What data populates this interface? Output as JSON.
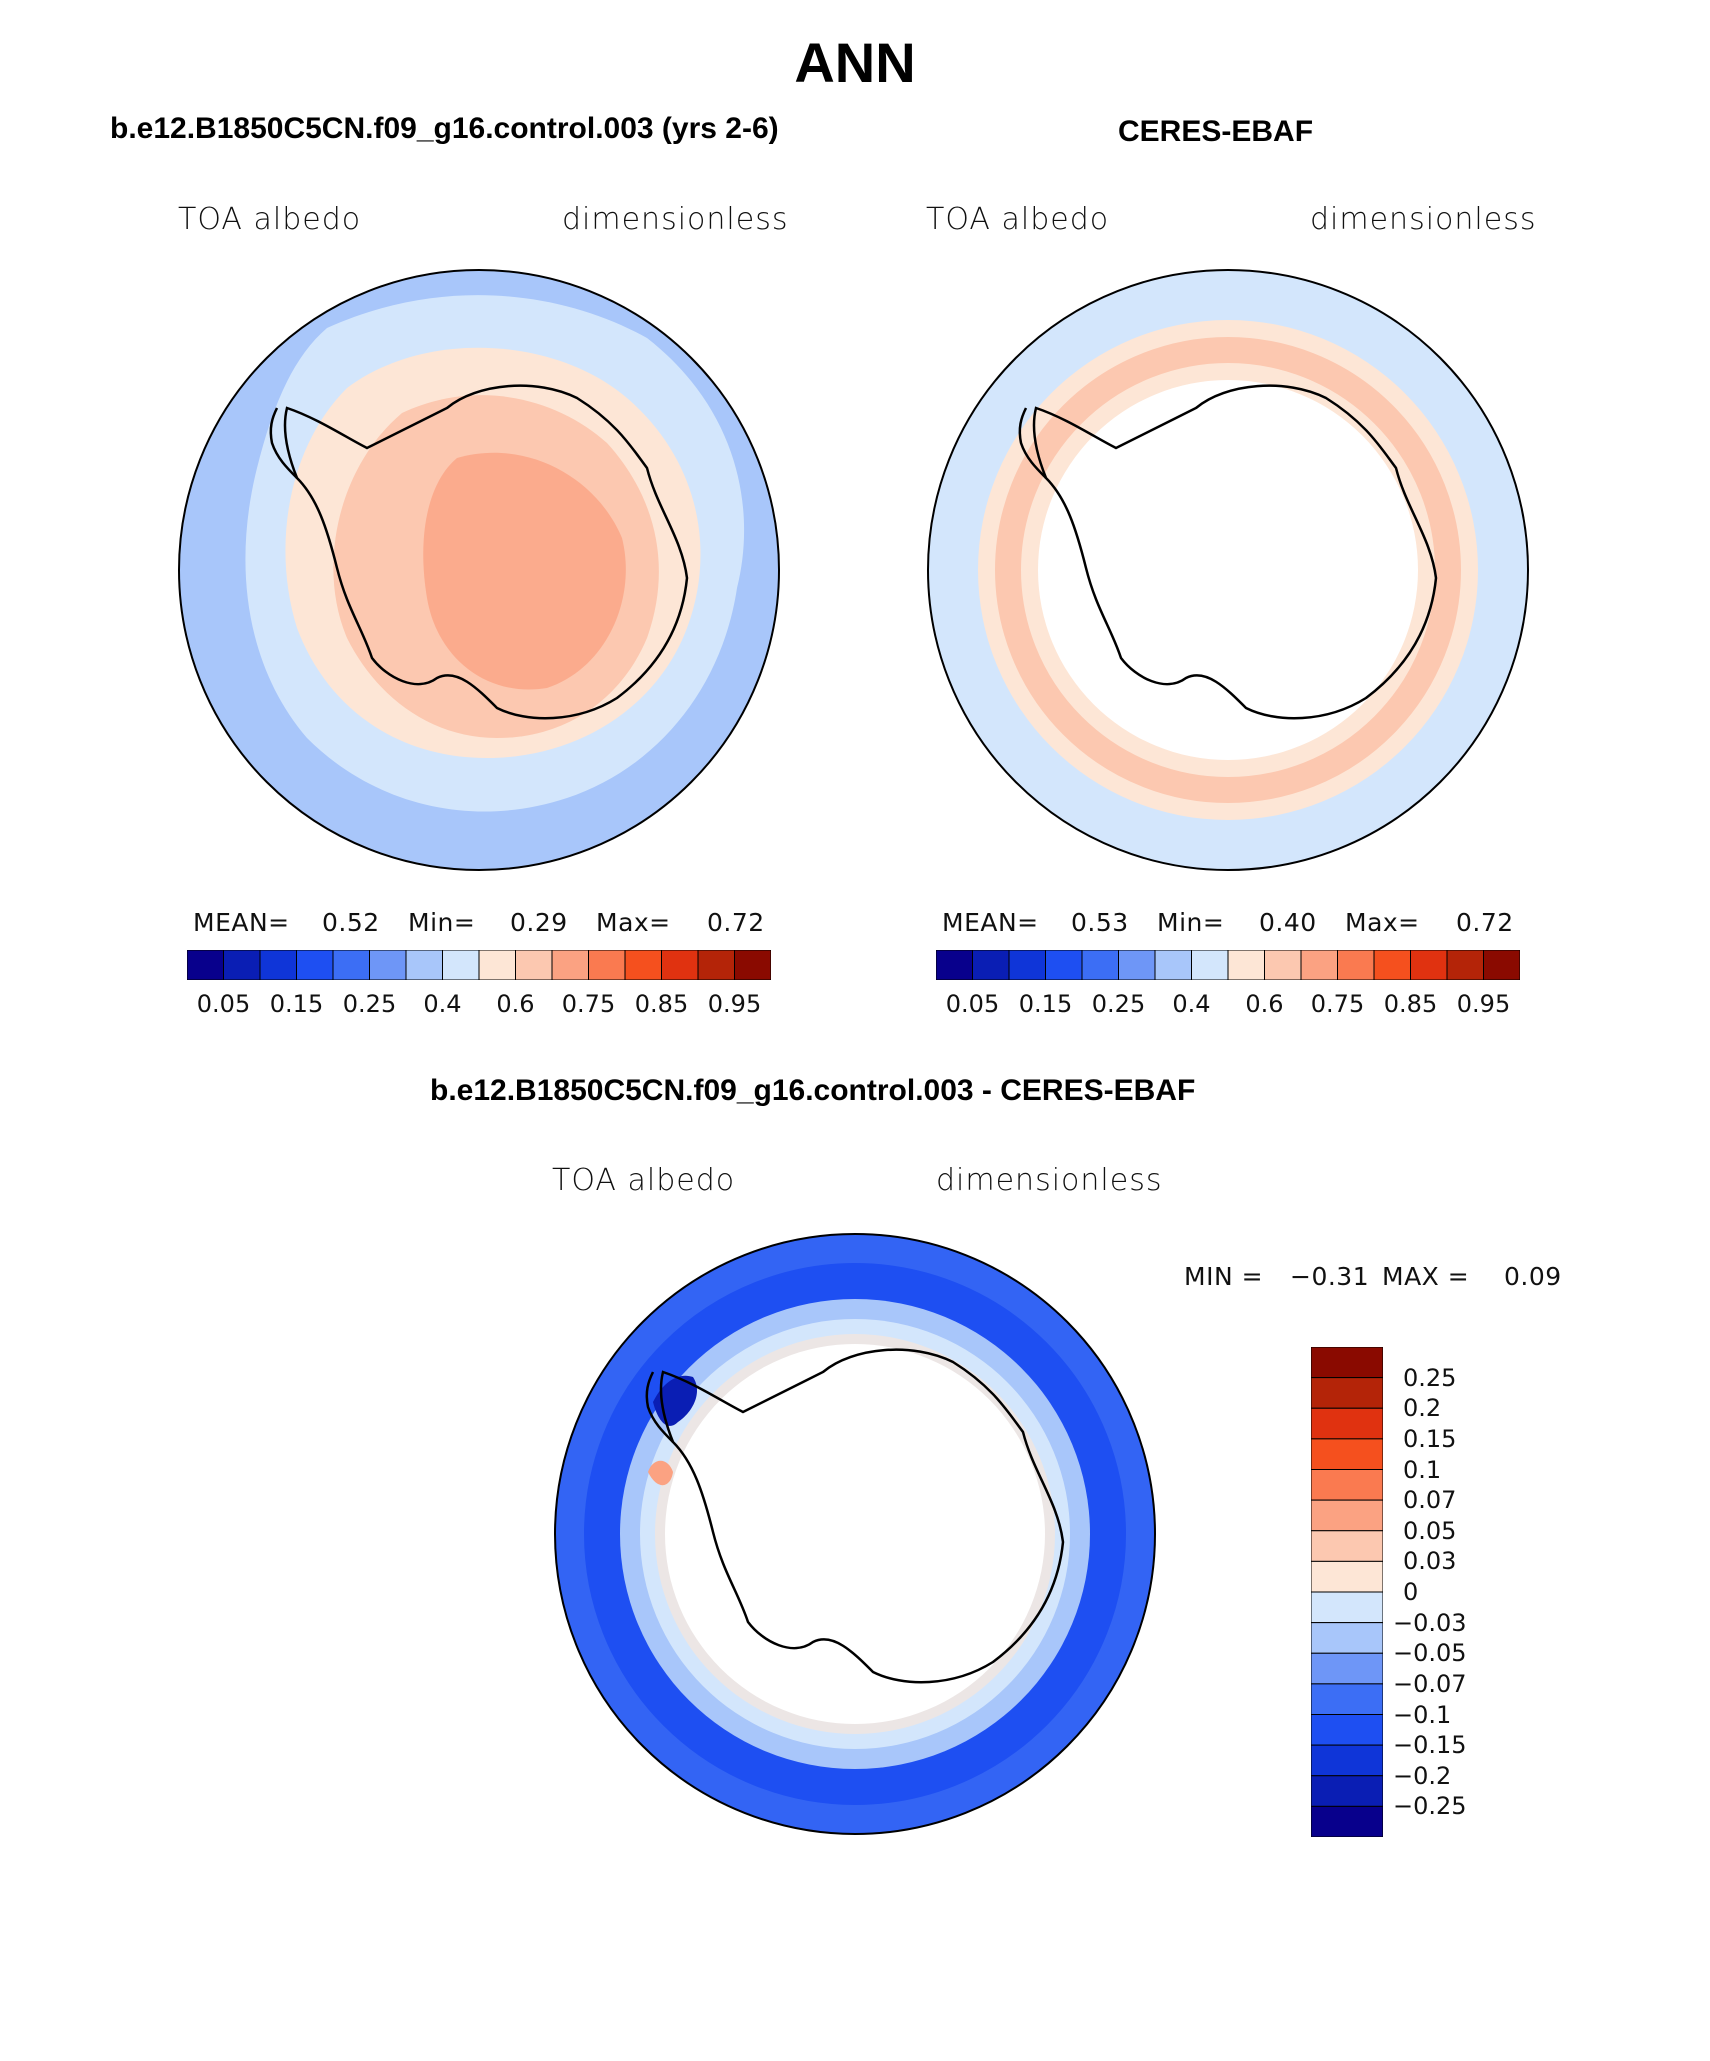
{
  "title": "ANN",
  "colors": {
    "blues": [
      "#08008c",
      "#0a1eb4",
      "#0f35d8",
      "#1e4ff2",
      "#3c6ef5",
      "#6e96f7",
      "#a8c6fa",
      "#d3e6fc"
    ],
    "reds": [
      "#fde6d6",
      "#fcc8b0",
      "#fba282",
      "#fa7a50",
      "#f5501e",
      "#e03210",
      "#b42408",
      "#8a0a00"
    ]
  },
  "panels": [
    {
      "title": "b.e12.B1850C5CN.f09_g16.control.003 (yrs 2-6)",
      "variable": "TOA albedo",
      "units": "dimensionless",
      "stats": {
        "mean_label": "MEAN=",
        "mean": "0.52",
        "min_label": "Min=",
        "min": "0.29",
        "max_label": "Max=",
        "max": "0.72"
      },
      "colorbar_ticks": [
        "0.05",
        "0.15",
        "0.25",
        "0.4",
        "0.6",
        "0.75",
        "0.85",
        "0.95"
      ]
    },
    {
      "title": "CERES-EBAF",
      "variable": "TOA albedo",
      "units": "dimensionless",
      "stats": {
        "mean_label": "MEAN=",
        "mean": "0.53",
        "min_label": "Min=",
        "min": "0.40",
        "max_label": "Max=",
        "max": "0.72"
      },
      "colorbar_ticks": [
        "0.05",
        "0.15",
        "0.25",
        "0.4",
        "0.6",
        "0.75",
        "0.85",
        "0.95"
      ]
    }
  ],
  "diff": {
    "title": "b.e12.B1850C5CN.f09_g16.control.003 - CERES-EBAF",
    "variable": "TOA albedo",
    "units": "dimensionless",
    "min_label": "MIN =",
    "min": "−0.31",
    "max_label": "MAX =",
    "max": "0.09",
    "colorbar_labels": [
      "0.25",
      "0.2",
      "0.15",
      "0.1",
      "0.07",
      "0.05",
      "0.03",
      "0",
      "−0.03",
      "−0.05",
      "−0.07",
      "−0.1",
      "−0.15",
      "−0.2",
      "−0.25"
    ]
  }
}
